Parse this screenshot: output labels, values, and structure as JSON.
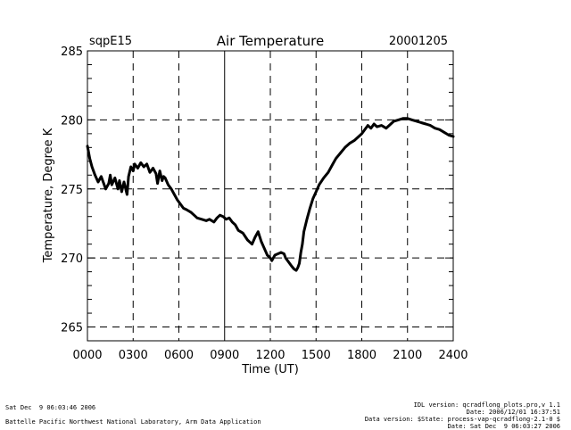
{
  "chart_data": {
    "type": "line",
    "title": "Air Temperature",
    "site": "sqpE15",
    "date": "20001205",
    "xlabel": "Time (UT)",
    "ylabel": "Temperature, Degree K",
    "xlim": [
      0,
      24
    ],
    "ylim": [
      264,
      285
    ],
    "x_ticks": [
      0,
      3,
      6,
      9,
      12,
      15,
      18,
      21,
      24
    ],
    "x_tick_labels": [
      "0000",
      "0300",
      "0600",
      "0900",
      "1200",
      "1500",
      "1800",
      "2100",
      "2400"
    ],
    "y_ticks": [
      265,
      270,
      275,
      280,
      285
    ],
    "y_tick_labels": [
      "265",
      "270",
      "275",
      "280",
      "285"
    ],
    "grid": "dashed",
    "series": [
      {
        "name": "Air Temperature",
        "color": "#000000",
        "x": [
          0.0,
          0.15,
          0.3,
          0.5,
          0.7,
          0.9,
          1.0,
          1.2,
          1.4,
          1.5,
          1.6,
          1.8,
          2.0,
          2.1,
          2.25,
          2.4,
          2.6,
          2.7,
          2.85,
          3.0,
          3.1,
          3.3,
          3.5,
          3.7,
          3.9,
          4.1,
          4.3,
          4.5,
          4.6,
          4.75,
          4.9,
          5.0,
          5.1,
          5.3,
          5.5,
          5.7,
          5.9,
          6.1,
          6.3,
          6.5,
          6.8,
          7.0,
          7.2,
          7.5,
          7.8,
          8.0,
          8.3,
          8.5,
          8.7,
          8.9,
          9.1,
          9.3,
          9.5,
          9.7,
          9.9,
          10.2,
          10.5,
          10.8,
          11.0,
          11.2,
          11.4,
          11.6,
          11.8,
          12.0,
          12.1,
          12.3,
          12.5,
          12.7,
          12.9,
          13.0,
          13.2,
          13.4,
          13.55,
          13.7,
          13.8,
          13.9,
          14.0,
          14.1,
          14.2,
          14.4,
          14.6,
          14.8,
          15.0,
          15.2,
          15.5,
          15.8,
          16.1,
          16.3,
          16.6,
          16.9,
          17.2,
          17.5,
          17.8,
          18.0,
          18.2,
          18.4,
          18.6,
          18.8,
          19.0,
          19.3,
          19.6,
          19.9,
          20.1,
          20.4,
          20.7,
          21.0,
          21.3,
          21.6,
          21.9,
          22.2,
          22.5,
          22.8,
          23.1,
          23.4,
          23.7,
          24.0
        ],
        "values": [
          278.1,
          277.2,
          276.6,
          276.0,
          275.5,
          275.9,
          275.6,
          275.0,
          275.4,
          276.0,
          275.3,
          275.8,
          275.0,
          275.6,
          274.8,
          275.5,
          274.6,
          275.9,
          276.6,
          276.3,
          276.8,
          276.5,
          276.9,
          276.6,
          276.8,
          276.2,
          276.5,
          276.1,
          275.4,
          276.3,
          275.6,
          275.9,
          275.8,
          275.3,
          275.0,
          274.6,
          274.2,
          273.9,
          273.6,
          273.5,
          273.3,
          273.1,
          272.9,
          272.8,
          272.7,
          272.8,
          272.6,
          272.9,
          273.1,
          273.0,
          272.8,
          272.9,
          272.6,
          272.4,
          272.0,
          271.8,
          271.3,
          271.0,
          271.5,
          271.9,
          271.2,
          270.7,
          270.2,
          270.0,
          269.8,
          270.2,
          270.3,
          270.4,
          270.3,
          270.0,
          269.7,
          269.4,
          269.2,
          269.1,
          269.3,
          269.6,
          270.4,
          271.0,
          271.9,
          272.8,
          273.6,
          274.3,
          274.8,
          275.3,
          275.8,
          276.2,
          276.8,
          277.2,
          277.6,
          278.0,
          278.3,
          278.5,
          278.8,
          279.0,
          279.3,
          279.6,
          279.4,
          279.7,
          279.5,
          279.6,
          279.4,
          279.7,
          279.9,
          280.0,
          280.1,
          280.1,
          280.0,
          279.9,
          279.8,
          279.7,
          279.6,
          279.4,
          279.3,
          279.1,
          278.9,
          278.8
        ]
      }
    ]
  },
  "footer": {
    "left_line1": "Sat Dec  9 06:03:46 2006",
    "left_line2": "Battelle Pacific Northwest National Laboratory, Arm Data Application",
    "right_line1": "IDL version: qcradflong_plots.pro,v 1.1",
    "right_line2": "Date: 2006/12/01 16:37:51",
    "right_line3": "Data version: $State: process-vap-qcradflong-2.1-0 $",
    "right_line4": "Date: Sat Dec  9 06:03:27 2006"
  }
}
